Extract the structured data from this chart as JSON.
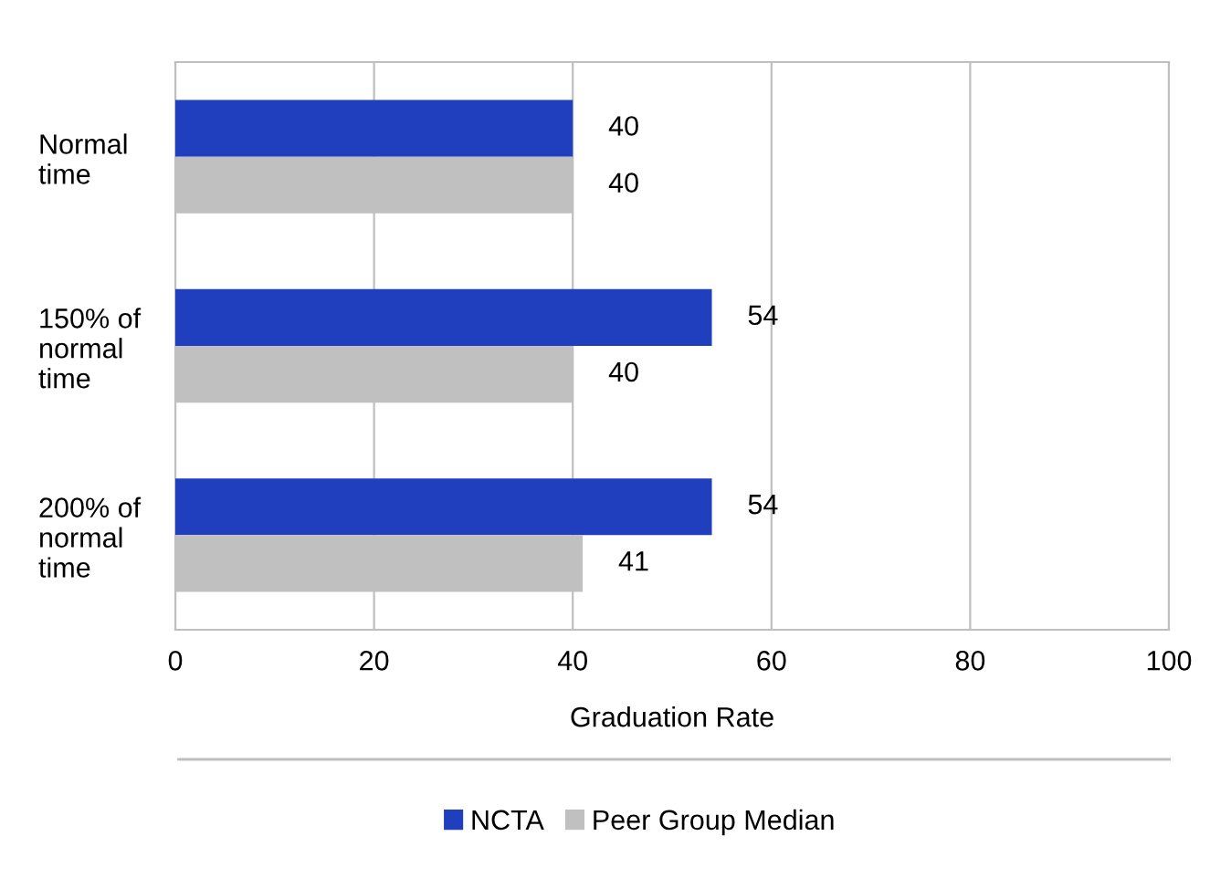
{
  "chart_data": {
    "type": "bar",
    "orientation": "horizontal",
    "categories": [
      "Normal\ntime",
      "150% of\nnormal\ntime",
      "200% of\nnormal\ntime"
    ],
    "series": [
      {
        "name": "NCTA",
        "color": "#1f3fbf",
        "values": [
          40,
          54,
          54
        ]
      },
      {
        "name": "Peer Group Median",
        "color": "#c0c0c0",
        "values": [
          40,
          40,
          41
        ]
      }
    ],
    "xlabel": "Graduation Rate",
    "xlim": [
      0,
      100
    ],
    "xticks": [
      0,
      20,
      40,
      60,
      80,
      100
    ],
    "grid": "x",
    "data_labels": true,
    "legend": "bottom"
  }
}
